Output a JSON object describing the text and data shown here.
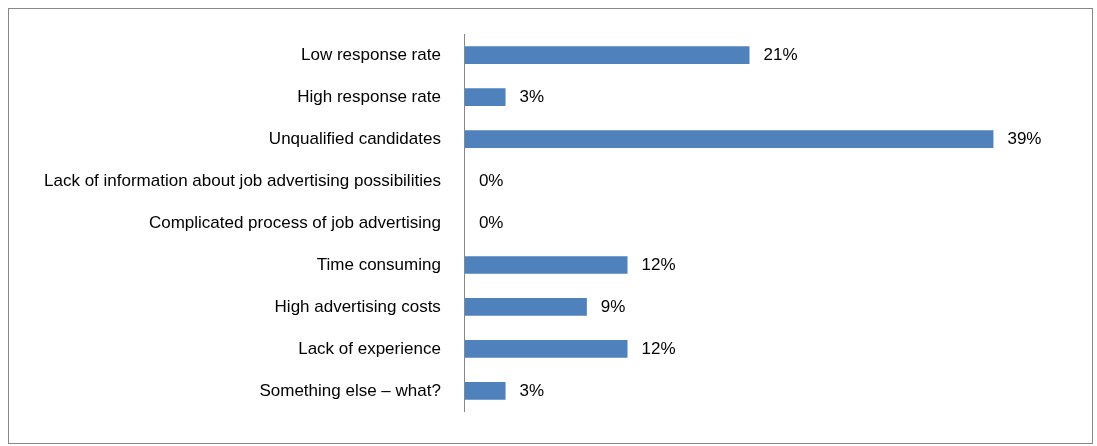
{
  "chart_data": {
    "type": "bar",
    "orientation": "horizontal",
    "categories": [
      "Low response rate",
      "High response rate",
      "Unqualified candidates",
      "Lack of information about job advertising possibilities",
      "Complicated process of job advertising",
      "Time consuming",
      "High advertising costs",
      "Lack of experience",
      "Something else – what?"
    ],
    "values": [
      21,
      3,
      39,
      0,
      0,
      12,
      9,
      12,
      3
    ],
    "value_labels": [
      "21%",
      "3%",
      "39%",
      "0%",
      "0%",
      "12%",
      "9%",
      "12%",
      "3%"
    ],
    "color": "#4f81bd",
    "grid": false,
    "legend": false
  }
}
